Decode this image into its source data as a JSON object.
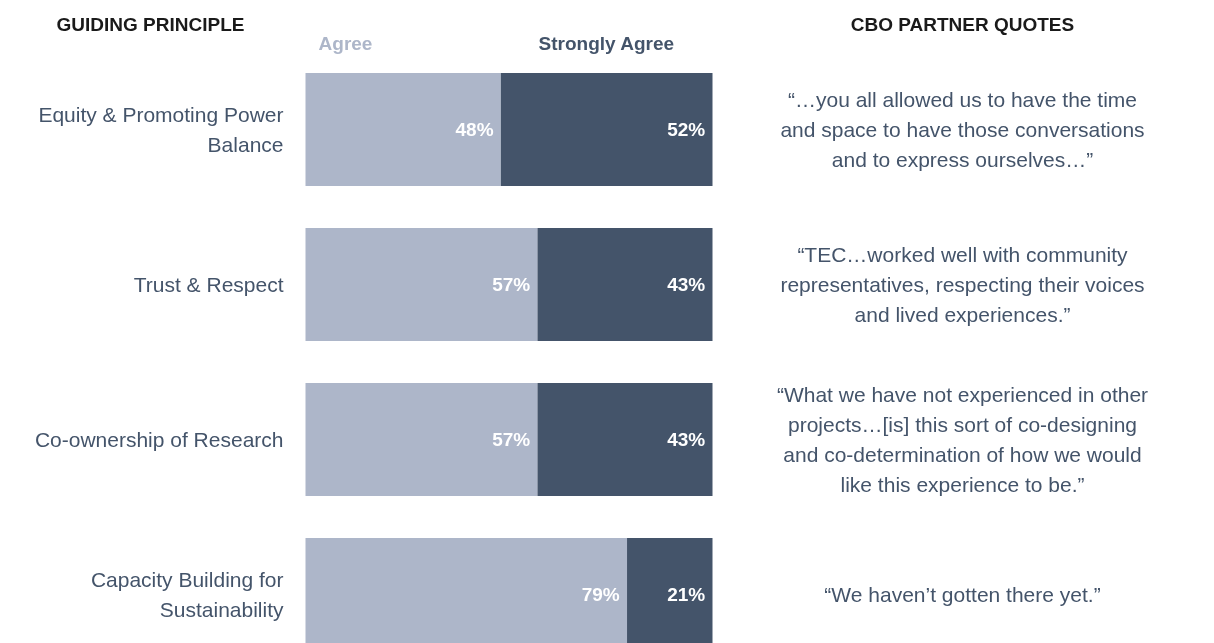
{
  "chart_data": {
    "type": "bar",
    "orientation": "horizontal",
    "stacked": true,
    "ylabel": "GUIDING PRINCIPLE",
    "categories": [
      "Equity & Promoting Power Balance",
      "Trust & Respect",
      "Co-ownership of Research",
      "Capacity Building for Sustainability"
    ],
    "series": [
      {
        "name": "Agree",
        "color": "#adb6c9",
        "values": [
          48,
          57,
          57,
          79
        ],
        "value_labels": [
          "48%",
          "57%",
          "57%",
          "79%"
        ]
      },
      {
        "name": "Strongly Agree",
        "color": "#44546a",
        "values": [
          52,
          43,
          43,
          21
        ],
        "value_labels": [
          "52%",
          "43%",
          "43%",
          "21%"
        ]
      }
    ],
    "xlim": [
      0,
      100
    ],
    "tick_labels": "y",
    "grid": false,
    "legend": "top",
    "annotations": [
      "CBO PARTNER QUOTES",
      "“…you all allowed us to have the time and space to have those conversations and to express ourselves…”",
      "“TEC…worked well with community representatives, respecting their voices and lived experiences.”",
      "“What we have not experienced in other projects…[is] this sort of co-designing and co-determination of how we would like this experience to be.”",
      "“We haven’t gotten there yet.”"
    ]
  }
}
